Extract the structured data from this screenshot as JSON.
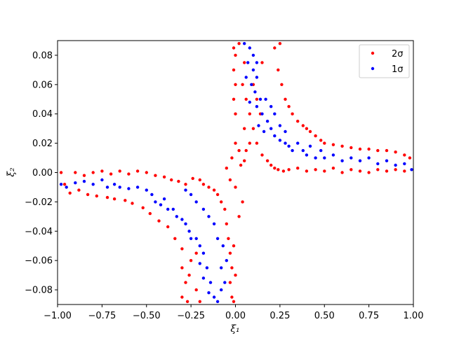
{
  "chart_data": {
    "type": "scatter",
    "xlabel": "ξ₁",
    "ylabel": "ξ₂",
    "xlim": [
      -1.0,
      1.0
    ],
    "ylim": [
      -0.09,
      0.09
    ],
    "x_ticks": [
      -1.0,
      -0.75,
      -0.5,
      -0.25,
      0.0,
      0.25,
      0.5,
      0.75,
      1.0
    ],
    "x_tick_labels": [
      "−1.00",
      "−0.75",
      "−0.50",
      "−0.25",
      "0.00",
      "0.25",
      "0.50",
      "0.75",
      "1.00"
    ],
    "y_ticks": [
      -0.08,
      -0.06,
      -0.04,
      -0.02,
      0.0,
      0.02,
      0.04,
      0.06,
      0.08
    ],
    "y_tick_labels": [
      "−0.08",
      "−0.06",
      "−0.04",
      "−0.02",
      "0.00",
      "0.02",
      "0.04",
      "0.06",
      "0.08"
    ],
    "grid": false,
    "legend_position": "top-right",
    "series": [
      {
        "name": "2σ",
        "color": "#ff0000",
        "points": [
          [
            -0.98,
            0.0
          ],
          [
            -0.96,
            -0.008
          ],
          [
            -0.93,
            -0.014
          ],
          [
            -0.9,
            0.0
          ],
          [
            -0.88,
            -0.012
          ],
          [
            -0.85,
            -0.002
          ],
          [
            -0.83,
            -0.015
          ],
          [
            -0.8,
            0.0
          ],
          [
            -0.78,
            -0.016
          ],
          [
            -0.75,
            0.001
          ],
          [
            -0.72,
            -0.017
          ],
          [
            -0.7,
            -0.001
          ],
          [
            -0.68,
            -0.018
          ],
          [
            -0.65,
            0.001
          ],
          [
            -0.62,
            -0.019
          ],
          [
            -0.6,
            -0.001
          ],
          [
            -0.58,
            -0.021
          ],
          [
            -0.55,
            0.001
          ],
          [
            -0.52,
            -0.024
          ],
          [
            -0.5,
            0.0
          ],
          [
            -0.48,
            -0.028
          ],
          [
            -0.45,
            -0.002
          ],
          [
            -0.43,
            -0.033
          ],
          [
            -0.4,
            -0.003
          ],
          [
            -0.38,
            -0.037
          ],
          [
            -0.36,
            -0.005
          ],
          [
            -0.34,
            -0.045
          ],
          [
            -0.32,
            -0.006
          ],
          [
            -0.3,
            -0.052
          ],
          [
            -0.28,
            -0.008
          ],
          [
            -0.3,
            -0.065
          ],
          [
            -0.28,
            -0.075
          ],
          [
            -0.3,
            -0.085
          ],
          [
            -0.27,
            -0.088
          ],
          [
            -0.26,
            -0.07
          ],
          [
            -0.25,
            -0.06
          ],
          [
            -0.22,
            -0.08
          ],
          [
            -0.2,
            -0.088
          ],
          [
            -0.22,
            -0.055
          ],
          [
            -0.24,
            -0.004
          ],
          [
            -0.2,
            -0.005
          ],
          [
            -0.18,
            -0.008
          ],
          [
            -0.15,
            -0.01
          ],
          [
            -0.12,
            -0.012
          ],
          [
            -0.1,
            -0.015
          ],
          [
            -0.08,
            -0.02
          ],
          [
            -0.06,
            -0.025
          ],
          [
            -0.05,
            -0.035
          ],
          [
            -0.04,
            -0.045
          ],
          [
            -0.03,
            -0.055
          ],
          [
            -0.02,
            -0.065
          ],
          [
            -0.03,
            -0.075
          ],
          [
            -0.02,
            -0.085
          ],
          [
            -0.01,
            -0.088
          ],
          [
            0.0,
            -0.07
          ],
          [
            -0.01,
            -0.05
          ],
          [
            0.02,
            -0.03
          ],
          [
            0.04,
            -0.02
          ],
          [
            0.0,
            -0.01
          ],
          [
            -0.03,
            -0.005
          ],
          [
            0.03,
            0.005
          ],
          [
            0.05,
            0.008
          ],
          [
            0.02,
            0.015
          ],
          [
            0.0,
            0.02
          ],
          [
            -0.02,
            0.01
          ],
          [
            -0.05,
            0.003
          ],
          [
            0.06,
            0.015
          ],
          [
            0.08,
            0.02
          ],
          [
            0.05,
            0.03
          ],
          [
            0.0,
            0.04
          ],
          [
            -0.01,
            0.05
          ],
          [
            0.0,
            0.06
          ],
          [
            -0.01,
            0.07
          ],
          [
            0.0,
            0.08
          ],
          [
            -0.01,
            0.085
          ],
          [
            0.02,
            0.088
          ],
          [
            0.05,
            0.075
          ],
          [
            0.04,
            0.06
          ],
          [
            0.06,
            0.05
          ],
          [
            0.08,
            0.04
          ],
          [
            0.1,
            0.03
          ],
          [
            0.12,
            0.02
          ],
          [
            0.15,
            0.012
          ],
          [
            0.18,
            0.008
          ],
          [
            0.2,
            0.005
          ],
          [
            0.22,
            0.003
          ],
          [
            0.24,
            0.002
          ],
          [
            0.27,
            0.001
          ],
          [
            0.25,
            0.088
          ],
          [
            0.22,
            0.085
          ],
          [
            0.24,
            0.07
          ],
          [
            0.26,
            0.06
          ],
          [
            0.28,
            0.05
          ],
          [
            0.3,
            0.045
          ],
          [
            0.32,
            0.04
          ],
          [
            0.35,
            0.035
          ],
          [
            0.38,
            0.032
          ],
          [
            0.4,
            0.03
          ],
          [
            0.42,
            0.028
          ],
          [
            0.45,
            0.025
          ],
          [
            0.48,
            0.022
          ],
          [
            0.5,
            0.02
          ],
          [
            0.55,
            0.019
          ],
          [
            0.6,
            0.018
          ],
          [
            0.65,
            0.017
          ],
          [
            0.7,
            0.016
          ],
          [
            0.75,
            0.016
          ],
          [
            0.8,
            0.015
          ],
          [
            0.85,
            0.015
          ],
          [
            0.9,
            0.014
          ],
          [
            0.95,
            0.012
          ],
          [
            0.98,
            0.01
          ],
          [
            0.3,
            0.002
          ],
          [
            0.35,
            0.003
          ],
          [
            0.4,
            0.001
          ],
          [
            0.45,
            0.002
          ],
          [
            0.5,
            0.001
          ],
          [
            0.55,
            0.003
          ],
          [
            0.6,
            0.0
          ],
          [
            0.65,
            0.002
          ],
          [
            0.7,
            0.001
          ],
          [
            0.75,
            0.0
          ],
          [
            0.8,
            0.002
          ],
          [
            0.85,
            0.001
          ],
          [
            0.9,
            0.002
          ],
          [
            0.95,
            0.001
          ],
          [
            0.12,
            0.05
          ],
          [
            0.14,
            0.04
          ],
          [
            0.1,
            0.06
          ],
          [
            0.15,
            0.075
          ]
        ]
      },
      {
        "name": "1σ",
        "color": "#0000ff",
        "points": [
          [
            -0.98,
            -0.008
          ],
          [
            -0.95,
            -0.01
          ],
          [
            -0.9,
            -0.007
          ],
          [
            -0.85,
            -0.006
          ],
          [
            -0.8,
            -0.008
          ],
          [
            -0.75,
            -0.005
          ],
          [
            -0.72,
            -0.01
          ],
          [
            -0.68,
            -0.008
          ],
          [
            -0.65,
            -0.01
          ],
          [
            -0.6,
            -0.011
          ],
          [
            -0.55,
            -0.01
          ],
          [
            -0.5,
            -0.012
          ],
          [
            -0.47,
            -0.015
          ],
          [
            -0.45,
            -0.02
          ],
          [
            -0.42,
            -0.022
          ],
          [
            -0.4,
            -0.018
          ],
          [
            -0.38,
            -0.025
          ],
          [
            -0.35,
            -0.025
          ],
          [
            -0.33,
            -0.03
          ],
          [
            -0.3,
            -0.032
          ],
          [
            -0.28,
            -0.035
          ],
          [
            -0.26,
            -0.04
          ],
          [
            -0.25,
            -0.045
          ],
          [
            -0.22,
            -0.045
          ],
          [
            -0.2,
            -0.05
          ],
          [
            -0.18,
            -0.055
          ],
          [
            -0.2,
            -0.062
          ],
          [
            -0.16,
            -0.065
          ],
          [
            -0.18,
            -0.072
          ],
          [
            -0.14,
            -0.075
          ],
          [
            -0.15,
            -0.082
          ],
          [
            -0.12,
            -0.085
          ],
          [
            -0.1,
            -0.088
          ],
          [
            -0.08,
            -0.08
          ],
          [
            -0.06,
            -0.075
          ],
          [
            -0.08,
            -0.065
          ],
          [
            -0.05,
            -0.06
          ],
          [
            -0.07,
            -0.05
          ],
          [
            -0.1,
            -0.045
          ],
          [
            -0.12,
            -0.035
          ],
          [
            -0.15,
            -0.03
          ],
          [
            -0.18,
            -0.025
          ],
          [
            -0.22,
            -0.02
          ],
          [
            -0.25,
            -0.015
          ],
          [
            -0.28,
            -0.012
          ],
          [
            0.05,
            0.088
          ],
          [
            0.08,
            0.085
          ],
          [
            0.1,
            0.08
          ],
          [
            0.12,
            0.075
          ],
          [
            0.1,
            0.07
          ],
          [
            0.06,
            0.065
          ],
          [
            0.09,
            0.06
          ],
          [
            0.11,
            0.055
          ],
          [
            0.14,
            0.05
          ],
          [
            0.08,
            0.048
          ],
          [
            0.12,
            0.045
          ],
          [
            0.15,
            0.04
          ],
          [
            0.18,
            0.035
          ],
          [
            0.13,
            0.032
          ],
          [
            0.16,
            0.028
          ],
          [
            0.2,
            0.03
          ],
          [
            0.22,
            0.025
          ],
          [
            0.25,
            0.022
          ],
          [
            0.28,
            0.02
          ],
          [
            0.3,
            0.018
          ],
          [
            0.32,
            0.015
          ],
          [
            0.35,
            0.02
          ],
          [
            0.38,
            0.015
          ],
          [
            0.4,
            0.012
          ],
          [
            0.42,
            0.018
          ],
          [
            0.45,
            0.01
          ],
          [
            0.48,
            0.015
          ],
          [
            0.5,
            0.01
          ],
          [
            0.55,
            0.012
          ],
          [
            0.6,
            0.008
          ],
          [
            0.65,
            0.01
          ],
          [
            0.7,
            0.008
          ],
          [
            0.75,
            0.01
          ],
          [
            0.8,
            0.006
          ],
          [
            0.85,
            0.008
          ],
          [
            0.9,
            0.005
          ],
          [
            0.95,
            0.006
          ],
          [
            0.99,
            0.002
          ],
          [
            0.2,
            0.045
          ],
          [
            0.17,
            0.05
          ],
          [
            0.22,
            0.04
          ],
          [
            0.25,
            0.032
          ],
          [
            0.28,
            0.028
          ],
          [
            0.12,
            0.065
          ],
          [
            0.07,
            0.075
          ]
        ]
      }
    ]
  }
}
